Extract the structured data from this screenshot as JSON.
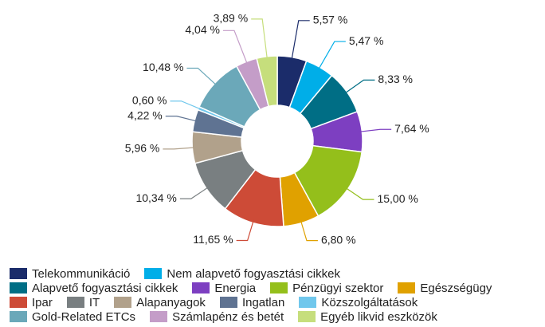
{
  "chart_data": {
    "type": "donut",
    "categories": [
      "Telekommunikáció",
      "Nem alapvető fogyasztási cikkek",
      "Alapvető fogyasztási cikkek",
      "Energia",
      "Pénzügyi szektor",
      "Egészségügy",
      "Ipar",
      "IT",
      "Alapanyagok",
      "Ingatlan",
      "Közszolgáltatások",
      "Gold-Related ETCs",
      "Számlapénz és betét",
      "Egyéb likvid eszközök"
    ],
    "values": [
      5.57,
      5.47,
      8.33,
      7.64,
      15.0,
      6.8,
      11.65,
      10.34,
      5.96,
      4.22,
      0.6,
      10.48,
      4.04,
      3.89
    ],
    "value_labels": [
      "5,57 %",
      "5,47 %",
      "8,33 %",
      "7,64 %",
      "15,00 %",
      "6,80 %",
      "11,65 %",
      "10,34 %",
      "5,96 %",
      "4,22 %",
      "0,60 %",
      "10,48 %",
      "4,04 %",
      "3,89 %"
    ],
    "colors": [
      "#1b2c6a",
      "#00aee8",
      "#006e85",
      "#7d3fc1",
      "#94bf1b",
      "#e0a100",
      "#cd4b37",
      "#797f81",
      "#b1a18b",
      "#5f7392",
      "#70c7ec",
      "#6ba8b9",
      "#c49dc8",
      "#c6de7c"
    ]
  }
}
